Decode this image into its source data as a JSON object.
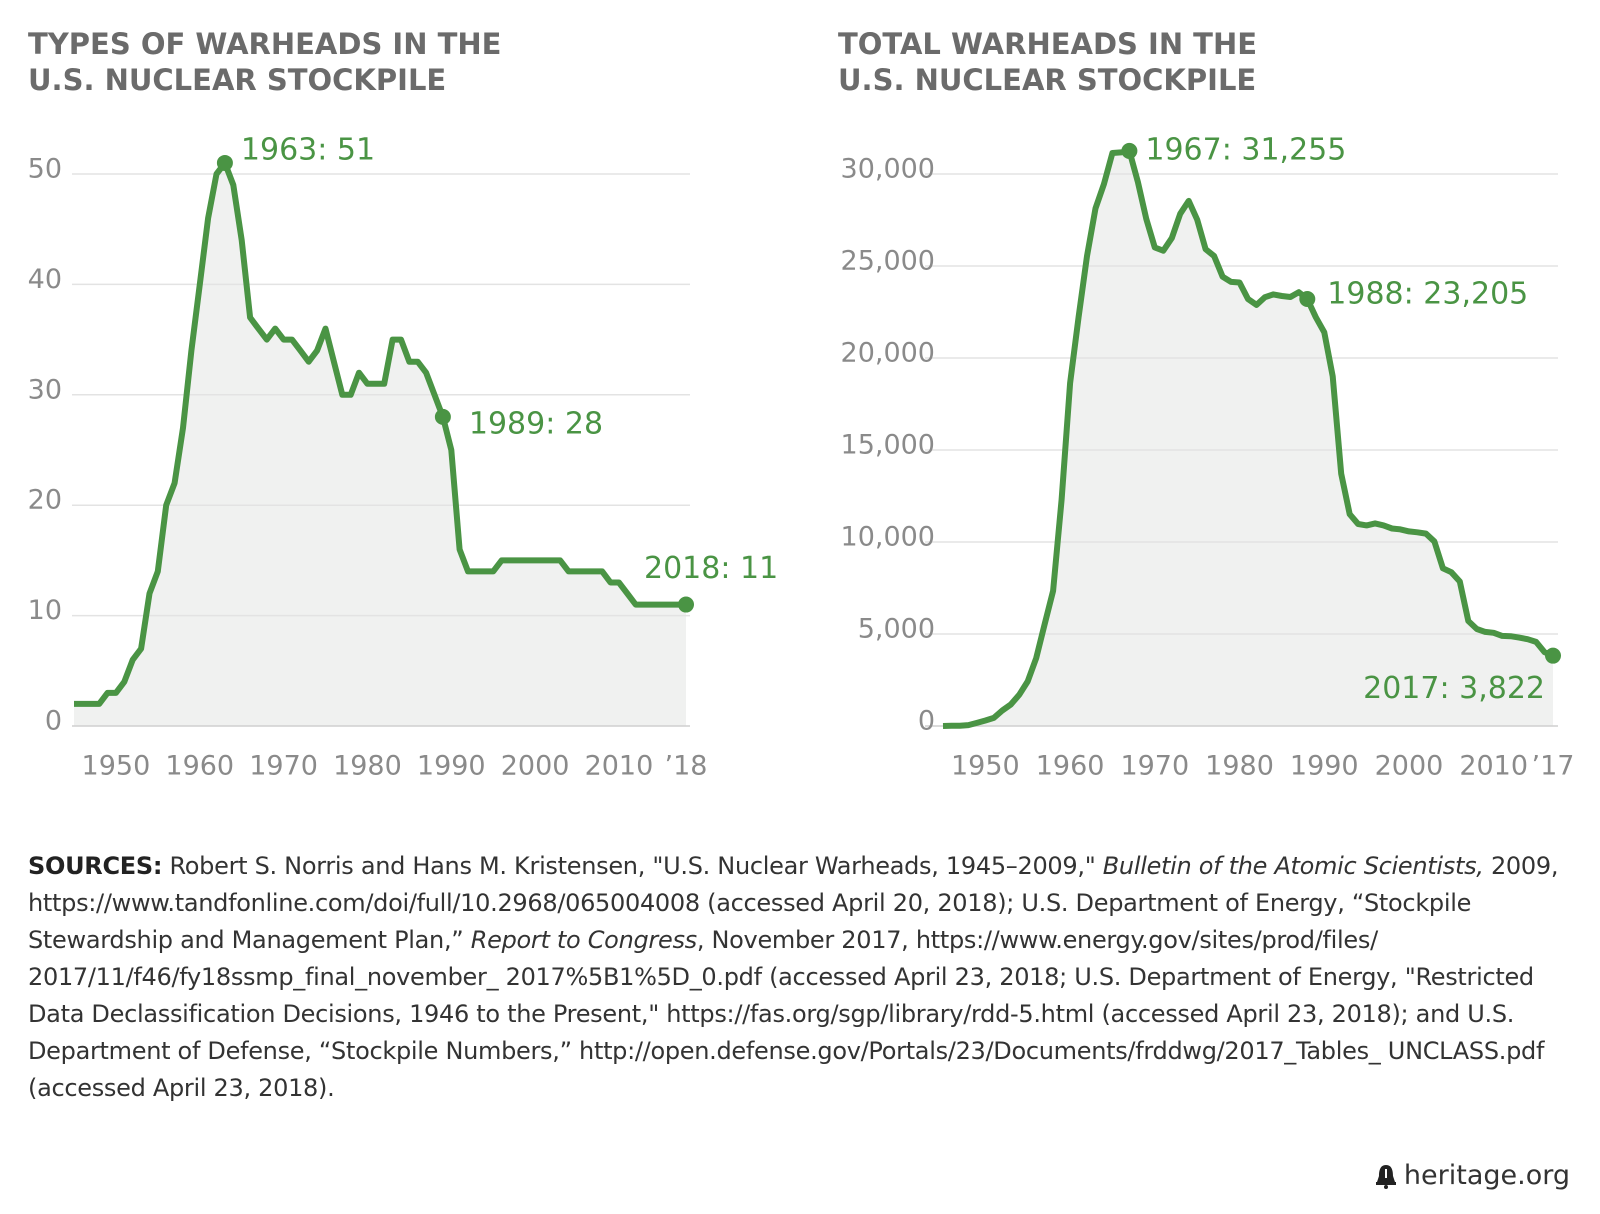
{
  "chart_data": [
    {
      "type": "area",
      "title": [
        "TYPES OF WARHEADS IN THE",
        "U.S. NUCLEAR STOCKPILE"
      ],
      "x": [
        1945,
        1946,
        1947,
        1948,
        1949,
        1950,
        1951,
        1952,
        1953,
        1954,
        1955,
        1956,
        1957,
        1958,
        1959,
        1960,
        1961,
        1962,
        1963,
        1964,
        1965,
        1966,
        1967,
        1968,
        1969,
        1970,
        1971,
        1972,
        1973,
        1974,
        1975,
        1976,
        1977,
        1978,
        1979,
        1980,
        1981,
        1982,
        1983,
        1984,
        1985,
        1986,
        1987,
        1988,
        1989,
        1990,
        1991,
        1992,
        1993,
        1994,
        1995,
        1996,
        1997,
        1998,
        1999,
        2000,
        2001,
        2002,
        2003,
        2004,
        2005,
        2006,
        2007,
        2008,
        2009,
        2010,
        2011,
        2012,
        2013,
        2014,
        2015,
        2016,
        2017,
        2018
      ],
      "values": [
        2,
        2,
        2,
        2,
        3,
        3,
        4,
        6,
        7,
        12,
        14,
        20,
        22,
        27,
        34,
        40,
        46,
        50,
        51,
        49,
        44,
        37,
        36,
        35,
        36,
        35,
        35,
        34,
        33,
        34,
        36,
        33,
        30,
        30,
        32,
        31,
        31,
        31,
        35,
        35,
        33,
        33,
        32,
        30,
        28,
        25,
        16,
        14,
        14,
        14,
        14,
        15,
        15,
        15,
        15,
        15,
        15,
        15,
        15,
        14,
        14,
        14,
        14,
        14,
        13,
        13,
        12,
        11,
        11,
        11,
        11,
        11,
        11,
        11
      ],
      "color": "#4a9444",
      "fill": "#f0f1f0",
      "xlim": [
        1945,
        2018
      ],
      "ylim": [
        0,
        50
      ],
      "xticks": [
        1950,
        1960,
        1970,
        1980,
        1990,
        2000,
        2010,
        {
          "value": 2018,
          "label": "’18"
        }
      ],
      "yticks": [
        0,
        10,
        20,
        30,
        40,
        50
      ],
      "grid": true,
      "annotations": [
        {
          "text": "1963: 51",
          "x": 1963,
          "y": 51
        },
        {
          "text": "1989: 28",
          "x": 1989,
          "y": 28
        },
        {
          "text": "2018: 11",
          "x": 2018,
          "y": 11
        }
      ]
    },
    {
      "type": "area",
      "title": [
        "TOTAL WARHEADS IN THE",
        "U.S. NUCLEAR STOCKPILE"
      ],
      "x": [
        1945,
        1946,
        1947,
        1948,
        1949,
        1950,
        1951,
        1952,
        1953,
        1954,
        1955,
        1956,
        1957,
        1958,
        1959,
        1960,
        1961,
        1962,
        1963,
        1964,
        1965,
        1966,
        1967,
        1968,
        1969,
        1970,
        1971,
        1972,
        1973,
        1974,
        1975,
        1976,
        1977,
        1978,
        1979,
        1980,
        1981,
        1982,
        1983,
        1984,
        1985,
        1986,
        1987,
        1988,
        1989,
        1990,
        1991,
        1992,
        1993,
        1994,
        1995,
        1996,
        1997,
        1998,
        1999,
        2000,
        2001,
        2002,
        2003,
        2004,
        2005,
        2006,
        2007,
        2008,
        2009,
        2010,
        2011,
        2012,
        2013,
        2014,
        2015,
        2016,
        2017
      ],
      "values": [
        2,
        9,
        13,
        50,
        170,
        299,
        438,
        841,
        1169,
        1703,
        2422,
        3692,
        5543,
        7345,
        12298,
        18638,
        22229,
        25540,
        28133,
        29463,
        31139,
        31175,
        31255,
        29561,
        27552,
        26008,
        25830,
        26516,
        27835,
        28537,
        27519,
        25914,
        25542,
        24418,
        24138,
        24104,
        23208,
        22886,
        23305,
        23459,
        23368,
        23317,
        23575,
        23205,
        22217,
        21392,
        19008,
        13708,
        11511,
        10979,
        10904,
        11011,
        10903,
        10732,
        10685,
        10577,
        10526,
        10457,
        10027,
        8570,
        8360,
        7853,
        5709,
        5273,
        5113,
        5066,
        4897,
        4881,
        4804,
        4717,
        4571,
        4018,
        3822
      ],
      "color": "#4a9444",
      "fill": "#f0f1f0",
      "xlim": [
        1945,
        2017
      ],
      "ylim": [
        0,
        30000
      ],
      "xticks": [
        1950,
        1960,
        1970,
        1980,
        1990,
        2000,
        2010,
        {
          "value": 2017,
          "label": "’17"
        }
      ],
      "yticks": [
        0,
        {
          "value": 5000,
          "label": "5,000"
        },
        {
          "value": 10000,
          "label": "10,000"
        },
        {
          "value": 15000,
          "label": "15,000"
        },
        {
          "value": 20000,
          "label": "20,000"
        },
        {
          "value": 25000,
          "label": "25,000"
        },
        {
          "value": 30000,
          "label": "30,000"
        }
      ],
      "grid": true,
      "annotations": [
        {
          "text": "1967: 31,255",
          "x": 1967,
          "y": 31255
        },
        {
          "text": "1988: 23,205",
          "x": 1988,
          "y": 23205
        },
        {
          "text": "2017: 3,822",
          "x": 2017,
          "y": 3822
        }
      ]
    }
  ],
  "sources": {
    "label": "SOURCES:",
    "parts": [
      {
        "text": " Robert S. Norris and Hans M. Kristensen, \"U.S. Nuclear Warheads, 1945–2009,\" "
      },
      {
        "text": "Bulletin of the Atomic Scientists,",
        "style": "italic"
      },
      {
        "text": " 2009, https://www.tandfonline.com/doi/full/10.2968/065004008 (accessed April 20, 2018); U.S. Department of Energy, “Stockpile Stewardship and Management Plan,” "
      },
      {
        "text": "Report to Congress",
        "style": "italic"
      },
      {
        "text": ", November 2017, https://www.energy.gov/sites/prod/files/ 2017/11/f46/fy18ssmp_final_november_ 2017%5B1%5D_0.pdf (accessed April 23, 2018; U.S. Department of Energy, \"Restricted Data Declassification Decisions, 1946 to the Present,\" https://fas.org/sgp/library/rdd-5.html (accessed April 23, 2018); and U.S. Department of Defense, “Stockpile Numbers,” http://open.defense.gov/Portals/23/Documents/frddwg/2017_Tables_ UNCLASS.pdf (accessed April 23, 2018)."
      }
    ]
  },
  "footer": "heritage.org"
}
